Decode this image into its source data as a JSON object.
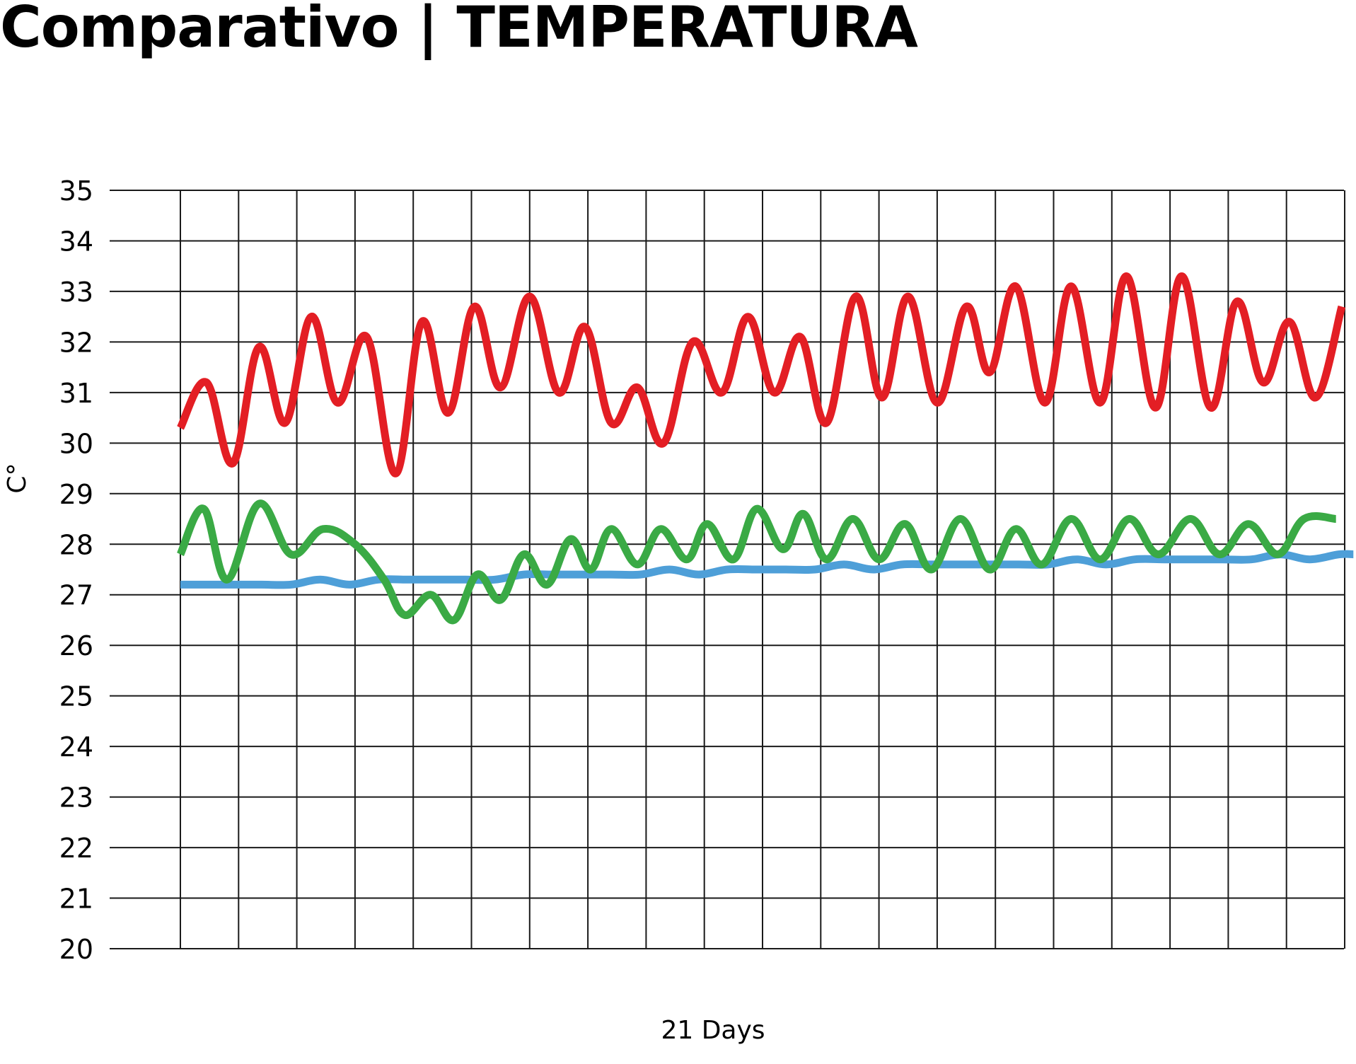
{
  "chart_data": {
    "type": "line",
    "title": "Comparativo | TEMPERATURA",
    "xlabel": "21 Days",
    "ylabel": "C°",
    "ylim": [
      20,
      35
    ],
    "yticks": [
      35,
      34,
      33,
      32,
      31,
      30,
      29,
      28,
      27,
      26,
      25,
      24,
      23,
      22,
      21,
      20
    ],
    "xlim": [
      0,
      20
    ],
    "grid": true,
    "legend": "none",
    "series": [
      {
        "color": "#e31e24",
        "x": [
          0,
          0.45,
          0.9,
          1.35,
          1.8,
          2.25,
          2.7,
          3.2,
          3.7,
          4.15,
          4.6,
          5.05,
          5.5,
          6.0,
          6.5,
          6.95,
          7.4,
          7.85,
          8.3,
          8.8,
          9.3,
          9.75,
          10.2,
          10.65,
          11.1,
          11.6,
          12.05,
          12.5,
          13.0,
          13.5,
          13.9,
          14.35,
          14.85,
          15.3,
          15.8,
          16.25,
          16.75,
          17.2,
          17.7,
          18.15,
          18.6,
          19.05,
          19.5,
          19.95
        ],
        "y": [
          30.3,
          31.2,
          29.6,
          31.9,
          30.4,
          32.5,
          30.8,
          32.1,
          29.4,
          32.4,
          30.6,
          32.7,
          31.1,
          32.9,
          31.0,
          32.3,
          30.4,
          31.1,
          30.0,
          32.0,
          31.0,
          32.5,
          31.0,
          32.1,
          30.4,
          32.9,
          30.9,
          32.9,
          30.8,
          32.7,
          31.4,
          33.1,
          30.8,
          33.1,
          30.8,
          33.3,
          30.7,
          33.3,
          30.7,
          32.8,
          31.2,
          32.4,
          30.9,
          32.7
        ]
      },
      {
        "color": "#3aaa45",
        "x": [
          0,
          0.4,
          0.8,
          1.35,
          1.9,
          2.45,
          3.0,
          3.5,
          3.85,
          4.3,
          4.7,
          5.1,
          5.5,
          5.9,
          6.3,
          6.7,
          7.05,
          7.4,
          7.85,
          8.25,
          8.7,
          9.05,
          9.5,
          9.9,
          10.35,
          10.7,
          11.1,
          11.55,
          12.0,
          12.45,
          12.9,
          13.4,
          13.9,
          14.35,
          14.8,
          15.3,
          15.8,
          16.3,
          16.8,
          17.35,
          17.85,
          18.35,
          18.85,
          19.3,
          19.85
        ],
        "y": [
          27.8,
          28.7,
          27.3,
          28.8,
          27.8,
          28.3,
          28.0,
          27.3,
          26.6,
          27.0,
          26.5,
          27.4,
          26.9,
          27.8,
          27.2,
          28.1,
          27.5,
          28.3,
          27.6,
          28.3,
          27.7,
          28.4,
          27.7,
          28.7,
          27.9,
          28.6,
          27.7,
          28.5,
          27.7,
          28.4,
          27.5,
          28.5,
          27.5,
          28.3,
          27.6,
          28.5,
          27.7,
          28.5,
          27.8,
          28.5,
          27.8,
          28.4,
          27.8,
          28.5,
          28.5
        ]
      },
      {
        "color": "#4e9fd8",
        "x": [
          0,
          0.4,
          0.9,
          1.4,
          1.9,
          2.4,
          2.9,
          3.4,
          3.9,
          4.4,
          4.9,
          5.4,
          5.9,
          6.4,
          6.9,
          7.4,
          7.9,
          8.4,
          8.9,
          9.4,
          9.9,
          10.4,
          10.9,
          11.4,
          11.9,
          12.4,
          12.9,
          13.4,
          13.9,
          14.4,
          14.9,
          15.4,
          15.9,
          16.4,
          16.9,
          17.4,
          17.9,
          18.4,
          18.9,
          19.4,
          19.9,
          20.15
        ],
        "y": [
          27.2,
          27.2,
          27.2,
          27.2,
          27.2,
          27.3,
          27.2,
          27.3,
          27.3,
          27.3,
          27.3,
          27.3,
          27.4,
          27.4,
          27.4,
          27.4,
          27.4,
          27.5,
          27.4,
          27.5,
          27.5,
          27.5,
          27.5,
          27.6,
          27.5,
          27.6,
          27.6,
          27.6,
          27.6,
          27.6,
          27.6,
          27.7,
          27.6,
          27.7,
          27.7,
          27.7,
          27.7,
          27.7,
          27.8,
          27.7,
          27.8,
          27.8
        ]
      }
    ]
  },
  "colors": {
    "grid": "#1a1a1a",
    "text": "#000000",
    "background": "#ffffff"
  }
}
